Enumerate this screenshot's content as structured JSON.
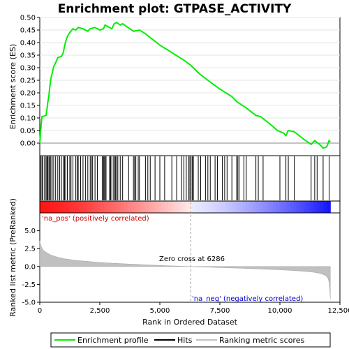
{
  "chart_data": {
    "type": "line",
    "title": "Enrichment plot: GTPASE_ACTIVITY",
    "xlabel": "Rank in Ordered Dataset",
    "ylabel_top": "Enrichment score (ES)",
    "ylabel_bottom": "Ranked list metric (PreRanked)",
    "xlim": [
      0,
      12500
    ],
    "ylim_top": [
      -0.05,
      0.5
    ],
    "ylim_bottom": [
      -5.0,
      7.5
    ],
    "x_ticks": [
      0,
      2500,
      5000,
      7500,
      10000,
      12500
    ],
    "x_tick_labels": [
      "0",
      "2,500",
      "5,000",
      "7,500",
      "10,000",
      "12,500"
    ],
    "y_ticks_top": [
      0.0,
      0.05,
      0.1,
      0.15,
      0.2,
      0.25,
      0.3,
      0.35,
      0.4,
      0.45,
      0.5
    ],
    "y_tick_labels_top": [
      "0.00",
      "0.05",
      "0.10",
      "0.15",
      "0.20",
      "0.25",
      "0.30",
      "0.35",
      "0.40",
      "0.45",
      "0.50"
    ],
    "y_ticks_bottom": [
      -5.0,
      -2.5,
      0.0,
      2.5,
      5.0
    ],
    "y_tick_labels_bottom": [
      "-5.0",
      "-2.5",
      "0.0",
      "2.5",
      "5.0"
    ],
    "dataset_size": 12100,
    "zero_cross": 6286,
    "annotations": {
      "pos_label": "'na_pos' (positively correlated)",
      "neg_label": "'na_neg' (negatively correlated)",
      "zero_cross_label": "Zero cross at 6286"
    },
    "enrichment_profile": [
      [
        0,
        0.0
      ],
      [
        40,
        0.055
      ],
      [
        90,
        0.105
      ],
      [
        260,
        0.11
      ],
      [
        300,
        0.135
      ],
      [
        330,
        0.16
      ],
      [
        380,
        0.19
      ],
      [
        420,
        0.225
      ],
      [
        460,
        0.255
      ],
      [
        520,
        0.28
      ],
      [
        580,
        0.305
      ],
      [
        660,
        0.32
      ],
      [
        750,
        0.34
      ],
      [
        900,
        0.345
      ],
      [
        980,
        0.36
      ],
      [
        1030,
        0.385
      ],
      [
        1080,
        0.405
      ],
      [
        1150,
        0.425
      ],
      [
        1250,
        0.44
      ],
      [
        1380,
        0.455
      ],
      [
        1500,
        0.45
      ],
      [
        1600,
        0.46
      ],
      [
        1800,
        0.455
      ],
      [
        2000,
        0.445
      ],
      [
        2100,
        0.455
      ],
      [
        2300,
        0.46
      ],
      [
        2500,
        0.45
      ],
      [
        2650,
        0.455
      ],
      [
        2720,
        0.47
      ],
      [
        2900,
        0.46
      ],
      [
        3000,
        0.455
      ],
      [
        3100,
        0.475
      ],
      [
        3200,
        0.48
      ],
      [
        3350,
        0.47
      ],
      [
        3450,
        0.475
      ],
      [
        3600,
        0.465
      ],
      [
        3900,
        0.445
      ],
      [
        4150,
        0.45
      ],
      [
        4400,
        0.435
      ],
      [
        4600,
        0.42
      ],
      [
        4800,
        0.405
      ],
      [
        5000,
        0.39
      ],
      [
        5500,
        0.36
      ],
      [
        6000,
        0.33
      ],
      [
        6286,
        0.31
      ],
      [
        6600,
        0.28
      ],
      [
        7000,
        0.25
      ],
      [
        7500,
        0.215
      ],
      [
        8000,
        0.185
      ],
      [
        8200,
        0.165
      ],
      [
        8600,
        0.14
      ],
      [
        9000,
        0.11
      ],
      [
        9200,
        0.105
      ],
      [
        9600,
        0.075
      ],
      [
        9900,
        0.05
      ],
      [
        10150,
        0.04
      ],
      [
        10250,
        0.03
      ],
      [
        10350,
        0.05
      ],
      [
        10600,
        0.045
      ],
      [
        11000,
        0.015
      ],
      [
        11300,
        -0.005
      ],
      [
        11450,
        0.01
      ],
      [
        11650,
        -0.005
      ],
      [
        11800,
        -0.02
      ],
      [
        11950,
        -0.015
      ],
      [
        12050,
        0.01
      ],
      [
        12100,
        0.005
      ]
    ],
    "hit_ranks": [
      40,
      90,
      130,
      200,
      260,
      300,
      330,
      380,
      420,
      460,
      520,
      580,
      660,
      750,
      830,
      900,
      980,
      1030,
      1080,
      1150,
      1250,
      1300,
      1380,
      1500,
      1560,
      1600,
      1700,
      1800,
      1900,
      2000,
      2100,
      2150,
      2200,
      2300,
      2400,
      2600,
      2650,
      2680,
      2720,
      2760,
      2900,
      2950,
      3000,
      3080,
      3100,
      3150,
      3200,
      3250,
      3350,
      3450,
      3700,
      3900,
      3950,
      4000,
      4100,
      4150,
      4400,
      4500,
      4600,
      4800,
      5000,
      5200,
      5500,
      5700,
      5900,
      6000,
      6100,
      6200,
      6250,
      6300,
      6350,
      6400,
      6600,
      6700,
      6900,
      7000,
      7100,
      7300,
      7400,
      7600,
      7700,
      7800,
      8000,
      8200,
      8250,
      8300,
      8500,
      8600,
      9000,
      9100,
      9300,
      10000,
      10250,
      10350,
      10600,
      11300,
      11450,
      11550,
      11800,
      12050
    ],
    "metric_curve": [
      [
        0,
        3.6
      ],
      [
        30,
        3.1
      ],
      [
        80,
        2.6
      ],
      [
        150,
        2.25
      ],
      [
        250,
        2.0
      ],
      [
        400,
        1.7
      ],
      [
        600,
        1.45
      ],
      [
        800,
        1.25
      ],
      [
        1000,
        1.1
      ],
      [
        1500,
        0.85
      ],
      [
        2000,
        0.7
      ],
      [
        2500,
        0.57
      ],
      [
        3000,
        0.47
      ],
      [
        3500,
        0.38
      ],
      [
        4000,
        0.3
      ],
      [
        4500,
        0.22
      ],
      [
        5000,
        0.15
      ],
      [
        5500,
        0.09
      ],
      [
        6000,
        0.03
      ],
      [
        6286,
        0.0
      ],
      [
        6600,
        -0.04
      ],
      [
        7000,
        -0.09
      ],
      [
        7500,
        -0.15
      ],
      [
        8000,
        -0.2
      ],
      [
        8500,
        -0.26
      ],
      [
        9000,
        -0.32
      ],
      [
        9500,
        -0.39
      ],
      [
        10000,
        -0.46
      ],
      [
        10500,
        -0.55
      ],
      [
        11000,
        -0.66
      ],
      [
        11400,
        -0.8
      ],
      [
        11700,
        -0.98
      ],
      [
        11900,
        -1.25
      ],
      [
        12000,
        -1.6
      ],
      [
        12050,
        -2.2
      ],
      [
        12080,
        -3.4
      ],
      [
        12100,
        -4.6
      ]
    ],
    "colors": {
      "profile": "#00ee00",
      "hits": "#000000",
      "zero_line": "#aaaaaa",
      "metric_fill": "#c0c0c0",
      "pos_text": "#cc0000",
      "neg_text": "#0000cc",
      "bar_pos": "#ff0000",
      "bar_neg": "#0000ff"
    }
  },
  "legend": {
    "items": [
      {
        "label": "Enrichment profile",
        "color": "#00ee00"
      },
      {
        "label": "Hits",
        "color": "#000000"
      },
      {
        "label": "Ranking metric scores",
        "color": "#c0c0c0"
      }
    ]
  }
}
